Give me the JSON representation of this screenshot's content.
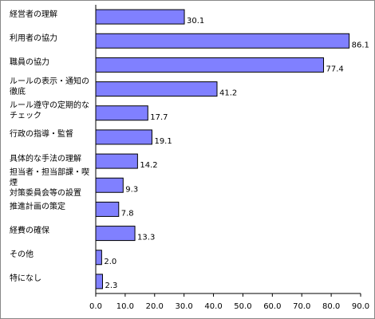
{
  "chart_data": {
    "type": "bar",
    "orientation": "horizontal",
    "categories": [
      "経営者の理解",
      "利用者の協力",
      "職員の協力",
      "ルールの表示・通知の\n徹底",
      "ルール遵守の定期的な\nチェック",
      "行政の指導・監督",
      "具体的な手法の理解",
      "担当者・担当部課・喫煙\n対策委員会等の設置",
      "推進計画の策定",
      "経費の確保",
      "その他",
      "特になし"
    ],
    "values": [
      30.1,
      86.1,
      77.4,
      41.2,
      17.7,
      19.1,
      14.2,
      9.3,
      7.8,
      13.3,
      2.0,
      2.3
    ],
    "value_labels": [
      "30.1",
      "86.1",
      "77.4",
      "41.2",
      "17.7",
      "19.1",
      "14.2",
      "9.3",
      "7.8",
      "13.3",
      "2.0",
      "2.3"
    ],
    "color": "#8080ff",
    "xlim": [
      0,
      90
    ],
    "xticks": [
      {
        "value": 0,
        "label": "0.0"
      },
      {
        "value": 10,
        "label": "10.0"
      },
      {
        "value": 20,
        "label": "20.0"
      },
      {
        "value": 30,
        "label": "30.0"
      },
      {
        "value": 40,
        "label": "40.0"
      },
      {
        "value": 50,
        "label": "50.0"
      },
      {
        "value": 60,
        "label": "60.0"
      },
      {
        "value": 70,
        "label": "70.0"
      },
      {
        "value": 80,
        "label": "80.0"
      },
      {
        "value": 90,
        "label": "90.0"
      }
    ],
    "grid": false
  }
}
